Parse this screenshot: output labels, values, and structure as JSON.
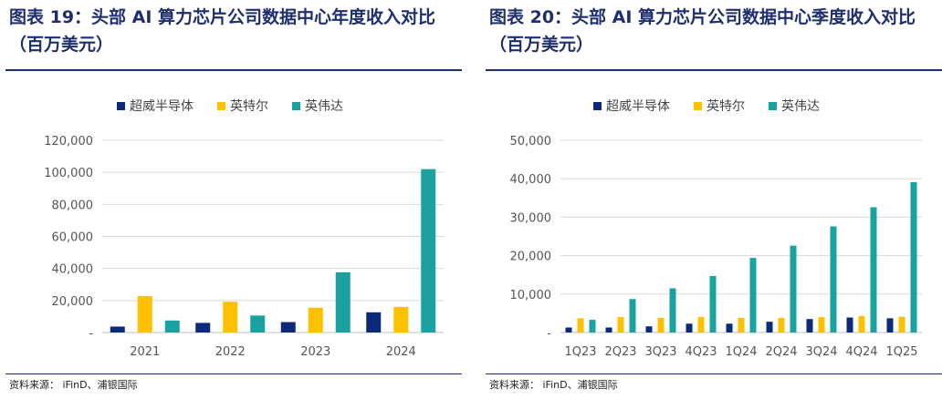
{
  "chart_data": [
    {
      "type": "bar",
      "title": "图表 19：头部 AI 算力芯片公司数据中心年度收入对比（百万美元）",
      "categories": [
        "2021",
        "2022",
        "2023",
        "2024"
      ],
      "series": [
        {
          "name": "超威半导体",
          "color": "#0d2a7a",
          "values": [
            3700,
            6000,
            6500,
            12600
          ]
        },
        {
          "name": "英特尔",
          "color": "#ffc000",
          "values": [
            22700,
            19200,
            15500,
            16000
          ]
        },
        {
          "name": "英伟达",
          "color": "#1aa2a0",
          "values": [
            7500,
            10600,
            37600,
            102000
          ]
        }
      ],
      "ylim": [
        0,
        120000
      ],
      "yticks": [
        0,
        20000,
        40000,
        60000,
        80000,
        100000,
        120000
      ],
      "ytick_labels": [
        "-",
        "20,000",
        "40,000",
        "60,000",
        "80,000",
        "100,000",
        "120,000"
      ],
      "grid": true,
      "legend": "top",
      "source": "资料来源：  iFinD、浦银国际"
    },
    {
      "type": "bar",
      "title": "图表 20：头部 AI 算力芯片公司数据中心季度收入对比（百万美元）",
      "categories": [
        "1Q23",
        "2Q23",
        "3Q23",
        "4Q23",
        "1Q24",
        "2Q24",
        "3Q24",
        "4Q24",
        "1Q25"
      ],
      "series": [
        {
          "name": "超威半导体",
          "color": "#0d2a7a",
          "values": [
            1300,
            1300,
            1600,
            2300,
            2300,
            2800,
            3500,
            3900,
            3700
          ]
        },
        {
          "name": "英特尔",
          "color": "#ffc000",
          "values": [
            3700,
            4000,
            3800,
            4000,
            3800,
            3800,
            4000,
            4300,
            4100
          ]
        },
        {
          "name": "英伟达",
          "color": "#1aa2a0",
          "values": [
            3300,
            8700,
            11500,
            14700,
            19400,
            22600,
            27600,
            32600,
            39100
          ]
        }
      ],
      "ylim": [
        0,
        50000
      ],
      "yticks": [
        0,
        10000,
        20000,
        30000,
        40000,
        50000
      ],
      "ytick_labels": [
        "-",
        "10,000",
        "20,000",
        "30,000",
        "40,000",
        "50,000"
      ],
      "grid": true,
      "legend": "top",
      "source": "资料来源：  iFinD、浦银国际"
    }
  ]
}
